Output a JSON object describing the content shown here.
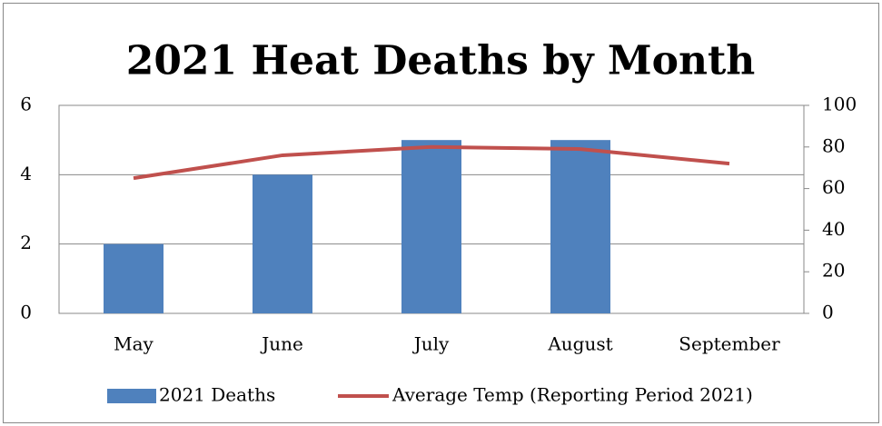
{
  "chart_data": {
    "type": "combo",
    "title": "2021 Heat Deaths by Month",
    "categories": [
      "May",
      "June",
      "July",
      "August",
      "September"
    ],
    "series": [
      {
        "name": "2021 Deaths",
        "type": "bar",
        "color": "#4f81bd",
        "values": [
          2,
          4,
          5,
          5,
          0
        ]
      },
      {
        "name": "Average Temp (Reporting Period 2021)",
        "type": "line",
        "axis": "y2",
        "color": "#c0504d",
        "values": [
          65,
          76,
          80,
          79,
          72
        ]
      }
    ],
    "ylim": [
      0,
      6
    ],
    "yticks": [
      0,
      2,
      4,
      6
    ],
    "y2lim": [
      0,
      100
    ],
    "y2ticks": [
      0,
      20,
      40,
      60,
      80,
      100
    ],
    "grid": true,
    "legend": "bottom"
  }
}
